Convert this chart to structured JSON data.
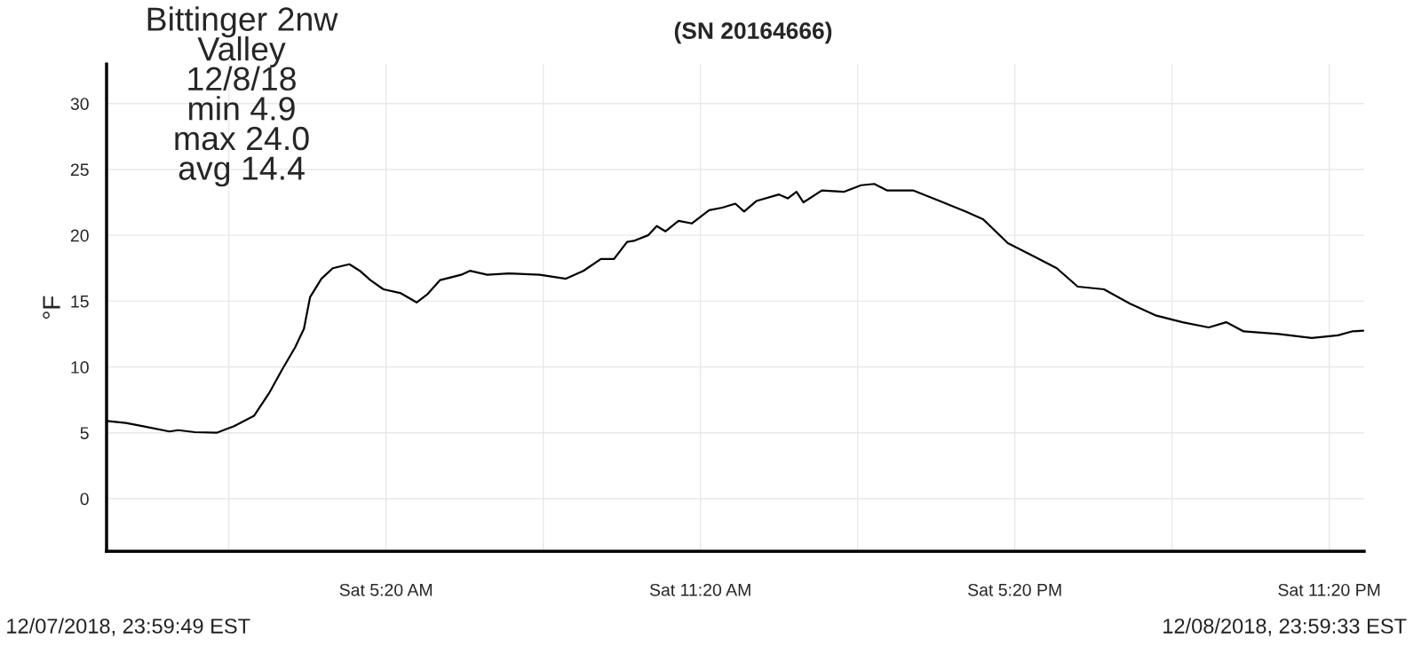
{
  "chart_data": {
    "type": "line",
    "title": "(SN 20164666)",
    "ylabel": "°F",
    "annotations": [
      "Bittinger 2nw\nValley\n12/8/18\nmin 4.9\nmax 24.0\navg 14.4",
      "12/07/2018, 23:59:49 EST",
      "12/08/2018, 23:59:33 EST"
    ],
    "x": [
      "2018-12-08T00:00",
      "2018-12-08T00:22",
      "2018-12-08T00:42",
      "2018-12-08T01:12",
      "2018-12-08T01:22",
      "2018-12-08T01:41",
      "2018-12-08T02:06",
      "2018-12-08T02:26",
      "2018-12-08T02:49",
      "2018-12-08T03:06",
      "2018-12-08T03:21",
      "2018-12-08T03:36",
      "2018-12-08T03:46",
      "2018-12-08T03:53",
      "2018-12-08T04:06",
      "2018-12-08T04:19",
      "2018-12-08T04:38",
      "2018-12-08T04:50",
      "2018-12-08T05:02",
      "2018-12-08T05:17",
      "2018-12-08T05:37",
      "2018-12-08T05:55",
      "2018-12-08T06:07",
      "2018-12-08T06:22",
      "2018-12-08T06:46",
      "2018-12-08T06:56",
      "2018-12-08T07:16",
      "2018-12-08T07:41",
      "2018-12-08T08:16",
      "2018-12-08T08:46",
      "2018-12-08T09:06",
      "2018-12-08T09:26",
      "2018-12-08T09:41",
      "2018-12-08T09:56",
      "2018-12-08T10:05",
      "2018-12-08T10:20",
      "2018-12-08T10:30",
      "2018-12-08T10:40",
      "2018-12-08T10:55",
      "2018-12-08T11:10",
      "2018-12-08T11:30",
      "2018-12-08T11:45",
      "2018-12-08T12:00",
      "2018-12-08T12:10",
      "2018-12-08T12:24",
      "2018-12-08T12:50",
      "2018-12-08T13:00",
      "2018-12-08T13:10",
      "2018-12-08T13:18",
      "2018-12-08T13:39",
      "2018-12-08T14:04",
      "2018-12-08T14:24",
      "2018-12-08T14:39",
      "2018-12-08T14:54",
      "2018-12-08T15:24",
      "2018-12-08T15:54",
      "2018-12-08T16:24",
      "2018-12-08T16:44",
      "2018-12-08T17:12",
      "2018-12-08T17:42",
      "2018-12-08T18:08",
      "2018-12-08T18:32",
      "2018-12-08T19:02",
      "2018-12-08T19:32",
      "2018-12-08T20:02",
      "2018-12-08T20:32",
      "2018-12-08T21:02",
      "2018-12-08T21:22",
      "2018-12-08T21:42",
      "2018-12-08T22:22",
      "2018-12-08T23:00",
      "2018-12-08T23:30",
      "2018-12-08T23:46",
      "2018-12-08T23:59"
    ],
    "series": [
      {
        "color": "#000000",
        "values": [
          5.9,
          5.75,
          5.5,
          5.1,
          5.2,
          5.05,
          5.0,
          5.5,
          6.3,
          8.0,
          9.8,
          11.5,
          12.9,
          15.3,
          16.7,
          17.5,
          17.8,
          17.3,
          16.6,
          15.9,
          15.6,
          14.9,
          15.5,
          16.6,
          17.0,
          17.3,
          17.0,
          17.1,
          17.0,
          16.7,
          17.3,
          18.2,
          18.2,
          19.5,
          19.6,
          20.0,
          20.7,
          20.3,
          21.1,
          20.9,
          21.9,
          22.1,
          22.4,
          21.8,
          22.6,
          23.1,
          22.8,
          23.3,
          22.5,
          23.4,
          23.3,
          23.8,
          23.9,
          23.4,
          23.4,
          22.6,
          21.8,
          21.2,
          19.4,
          18.4,
          17.5,
          16.1,
          15.9,
          14.8,
          13.9,
          13.4,
          13.0,
          13.4,
          12.7,
          12.5,
          12.2,
          12.4,
          12.7,
          12.75
        ]
      }
    ],
    "xlim": [
      "2018-12-08T00:00",
      "2018-12-09T00:00"
    ],
    "xticks": [
      {
        "value": "2018-12-08T02:20",
        "label": null
      },
      {
        "value": "2018-12-08T05:20",
        "label": "Sat 5:20 AM"
      },
      {
        "value": "2018-12-08T08:20",
        "label": null
      },
      {
        "value": "2018-12-08T11:20",
        "label": "Sat 11:20 AM"
      },
      {
        "value": "2018-12-08T14:20",
        "label": null
      },
      {
        "value": "2018-12-08T17:20",
        "label": "Sat 5:20 PM"
      },
      {
        "value": "2018-12-08T20:20",
        "label": null
      },
      {
        "value": "2018-12-08T23:20",
        "label": "Sat 11:20 PM"
      }
    ],
    "ylim": [
      -4,
      33
    ],
    "yticks": [
      0,
      5,
      10,
      15,
      20,
      25,
      30
    ],
    "grid": true,
    "marker": "none",
    "line_style": "solid",
    "legend": false
  }
}
